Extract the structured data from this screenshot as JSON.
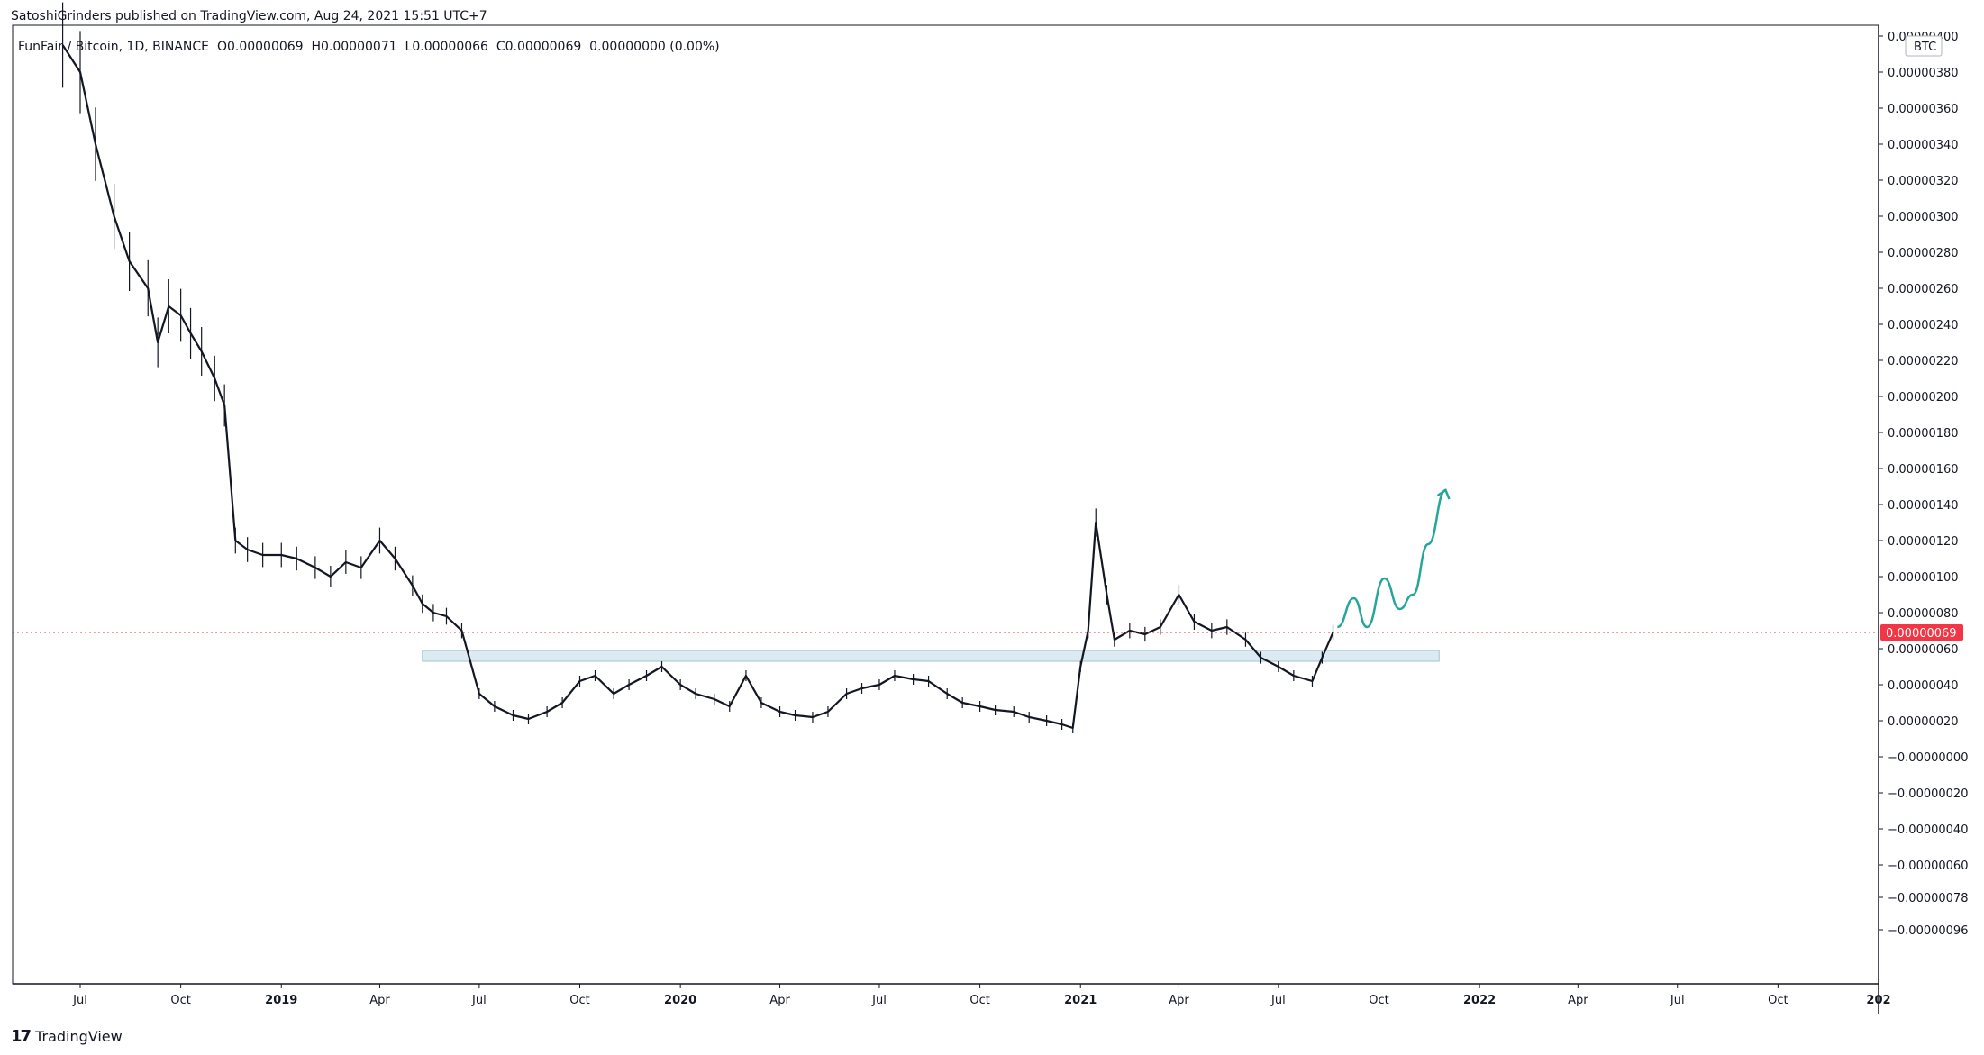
{
  "publisher_line": "SatoshiGrinders published on TradingView.com, Aug 24, 2021 15:51 UTC+7",
  "legend": {
    "symbol": "FunFair / Bitcoin, 1D, BINANCE",
    "open": "O0.00000069",
    "high": "H0.00000071",
    "low": "L0.00000066",
    "close": "C0.00000069",
    "change": "0.00000000 (0.00%)"
  },
  "footer": {
    "logo": "17",
    "brand": "TradingView"
  },
  "colors": {
    "candle": "#131722",
    "zone_fill": "#d6e8ef",
    "zone_stroke": "#8fb9c9",
    "projection": "#26a69a",
    "last_price": "#f23645",
    "grid": "#e0e3eb"
  },
  "chart_data": {
    "type": "line",
    "title": "FunFair / Bitcoin, 1D, BINANCE",
    "currency_label": "BTC",
    "last_price_label": "0.00000069",
    "x_tick_labels": [
      "Jul",
      "Oct",
      "2019",
      "Apr",
      "Jul",
      "Oct",
      "2020",
      "Apr",
      "Jul",
      "Oct",
      "2021",
      "Apr",
      "Jul",
      "Oct",
      "2022",
      "Apr",
      "Jul",
      "Oct",
      "202"
    ],
    "x_tick_dates": [
      "2018-07-01",
      "2018-10-01",
      "2019-01-01",
      "2019-04-01",
      "2019-07-01",
      "2019-10-01",
      "2020-01-01",
      "2020-04-01",
      "2020-07-01",
      "2020-10-01",
      "2021-01-01",
      "2021-04-01",
      "2021-07-01",
      "2021-10-01",
      "2022-01-01",
      "2022-04-01",
      "2022-07-01",
      "2022-10-01",
      "2023-01-01"
    ],
    "y_tick_labels": [
      "0.00000400",
      "0.00000380",
      "0.00000360",
      "0.00000340",
      "0.00000320",
      "0.00000300",
      "0.00000280",
      "0.00000260",
      "0.00000240",
      "0.00000220",
      "0.00000200",
      "0.00000180",
      "0.00000160",
      "0.00000140",
      "0.00000120",
      "0.00000100",
      "0.00000080",
      "0.00000060",
      "0.00000040",
      "0.00000020",
      "−0.00000000",
      "−0.00000020",
      "−0.00000040",
      "−0.00000060",
      "−0.00000078",
      "−0.00000096"
    ],
    "y_tick_values": [
      4.0,
      3.8,
      3.6,
      3.4,
      3.2,
      3.0,
      2.8,
      2.6,
      2.4,
      2.2,
      2.0,
      1.8,
      1.6,
      1.4,
      1.2,
      1.0,
      0.8,
      0.6,
      0.4,
      0.2,
      0.0,
      -0.2,
      -0.4,
      -0.6,
      -0.78,
      -0.96
    ],
    "ylim": [
      -1.1,
      4.0
    ],
    "y_unit": "BTC ×1e-6",
    "price_series": {
      "x": [
        "2018-06-15",
        "2018-07-01",
        "2018-07-15",
        "2018-08-01",
        "2018-08-15",
        "2018-09-01",
        "2018-09-10",
        "2018-09-20",
        "2018-10-01",
        "2018-10-10",
        "2018-10-20",
        "2018-11-01",
        "2018-11-10",
        "2018-11-20",
        "2018-12-01",
        "2018-12-15",
        "2019-01-01",
        "2019-01-15",
        "2019-02-01",
        "2019-02-15",
        "2019-03-01",
        "2019-03-15",
        "2019-04-01",
        "2019-04-15",
        "2019-05-01",
        "2019-05-10",
        "2019-05-20",
        "2019-06-01",
        "2019-06-15",
        "2019-07-01",
        "2019-07-15",
        "2019-08-01",
        "2019-08-15",
        "2019-09-01",
        "2019-09-15",
        "2019-10-01",
        "2019-10-15",
        "2019-11-01",
        "2019-11-15",
        "2019-12-01",
        "2019-12-15",
        "2020-01-01",
        "2020-01-15",
        "2020-02-01",
        "2020-02-15",
        "2020-03-01",
        "2020-03-15",
        "2020-04-01",
        "2020-04-15",
        "2020-05-01",
        "2020-05-15",
        "2020-06-01",
        "2020-06-15",
        "2020-07-01",
        "2020-07-15",
        "2020-08-01",
        "2020-08-15",
        "2020-09-01",
        "2020-09-15",
        "2020-10-01",
        "2020-10-15",
        "2020-11-01",
        "2020-11-15",
        "2020-12-01",
        "2020-12-15",
        "2020-12-25",
        "2021-01-01",
        "2021-01-08",
        "2021-01-15",
        "2021-01-25",
        "2021-02-01",
        "2021-02-15",
        "2021-03-01",
        "2021-03-15",
        "2021-04-01",
        "2021-04-15",
        "2021-05-01",
        "2021-05-15",
        "2021-06-01",
        "2021-06-15",
        "2021-07-01",
        "2021-07-15",
        "2021-08-01",
        "2021-08-10",
        "2021-08-20"
      ],
      "close": [
        3.95,
        3.8,
        3.4,
        3.0,
        2.75,
        2.6,
        2.3,
        2.5,
        2.45,
        2.35,
        2.25,
        2.1,
        1.95,
        1.2,
        1.15,
        1.12,
        1.12,
        1.1,
        1.05,
        1.0,
        1.08,
        1.05,
        1.2,
        1.1,
        0.95,
        0.85,
        0.8,
        0.78,
        0.7,
        0.35,
        0.28,
        0.23,
        0.21,
        0.25,
        0.3,
        0.42,
        0.45,
        0.35,
        0.4,
        0.45,
        0.5,
        0.4,
        0.35,
        0.32,
        0.28,
        0.45,
        0.3,
        0.25,
        0.23,
        0.22,
        0.25,
        0.35,
        0.38,
        0.4,
        0.45,
        0.43,
        0.42,
        0.35,
        0.3,
        0.28,
        0.26,
        0.25,
        0.22,
        0.2,
        0.18,
        0.16,
        0.5,
        0.7,
        1.3,
        0.9,
        0.65,
        0.7,
        0.68,
        0.72,
        0.9,
        0.75,
        0.7,
        0.72,
        0.65,
        0.55,
        0.5,
        0.45,
        0.42,
        0.55,
        0.69
      ]
    },
    "support_zone": {
      "x_start": "2019-05-10",
      "x_end": "2021-11-25",
      "y_low": 0.53,
      "y_high": 0.59
    },
    "last_price": 0.69,
    "projection": {
      "x": [
        "2021-08-24",
        "2021-09-08",
        "2021-09-20",
        "2021-10-06",
        "2021-10-20",
        "2021-11-01",
        "2021-11-15",
        "2021-12-01"
      ],
      "y": [
        0.72,
        0.88,
        0.72,
        0.99,
        0.82,
        0.9,
        1.18,
        1.48
      ]
    }
  }
}
